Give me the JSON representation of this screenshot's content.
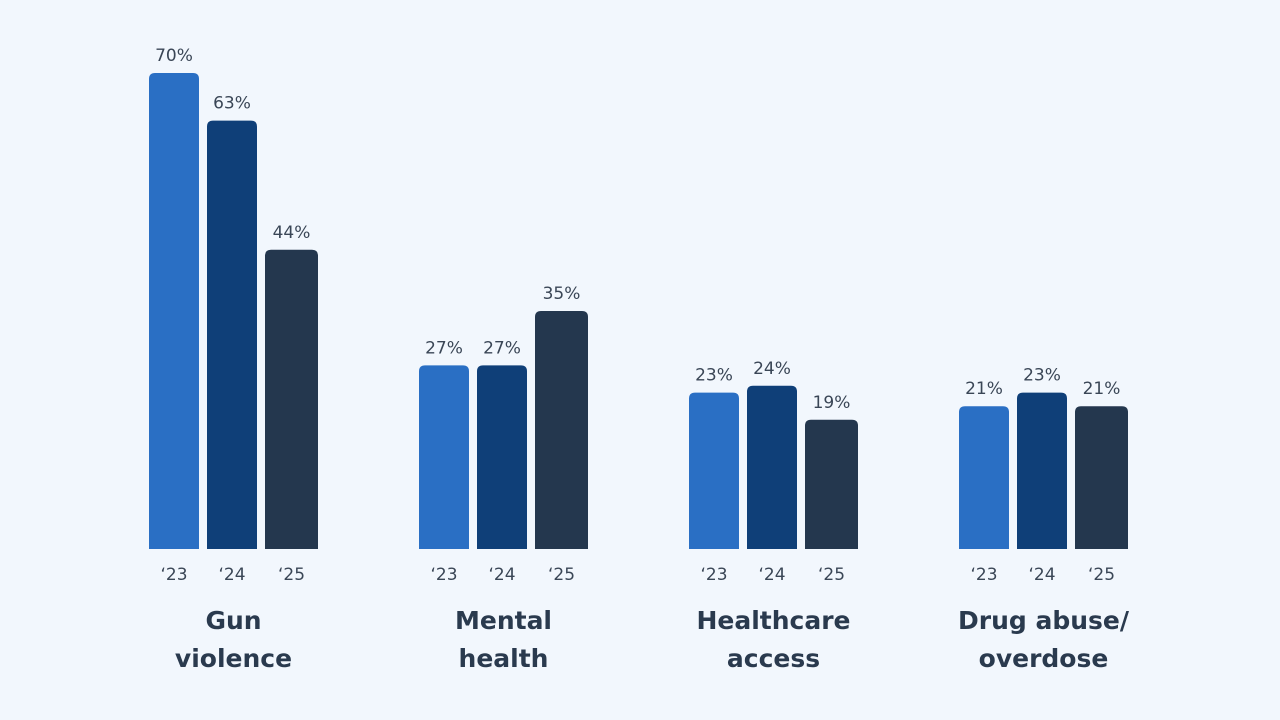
{
  "chart_data": {
    "type": "bar",
    "categories": [
      {
        "lines": [
          "Gun",
          "violence"
        ]
      },
      {
        "lines": [
          "Mental",
          "health"
        ]
      },
      {
        "lines": [
          "Healthcare",
          "access"
        ]
      },
      {
        "lines": [
          "Drug abuse/",
          "overdose"
        ]
      }
    ],
    "series": [
      {
        "name": "‘23",
        "color": "#2a6fc4",
        "values": [
          70,
          27,
          23,
          21
        ],
        "labels": [
          "70%",
          "27%",
          "23%",
          "21%"
        ]
      },
      {
        "name": "‘24",
        "color": "#0f3f78",
        "values": [
          63,
          27,
          24,
          23
        ],
        "labels": [
          "63%",
          "27%",
          "24%",
          "23%"
        ]
      },
      {
        "name": "‘25",
        "color": "#24374e",
        "values": [
          44,
          35,
          19,
          21
        ],
        "labels": [
          "44%",
          "35%",
          "19%",
          "21%"
        ]
      }
    ],
    "ylim": [
      0,
      70
    ],
    "grid": false,
    "legend": "none",
    "title": "",
    "xlabel": "",
    "ylabel": ""
  }
}
